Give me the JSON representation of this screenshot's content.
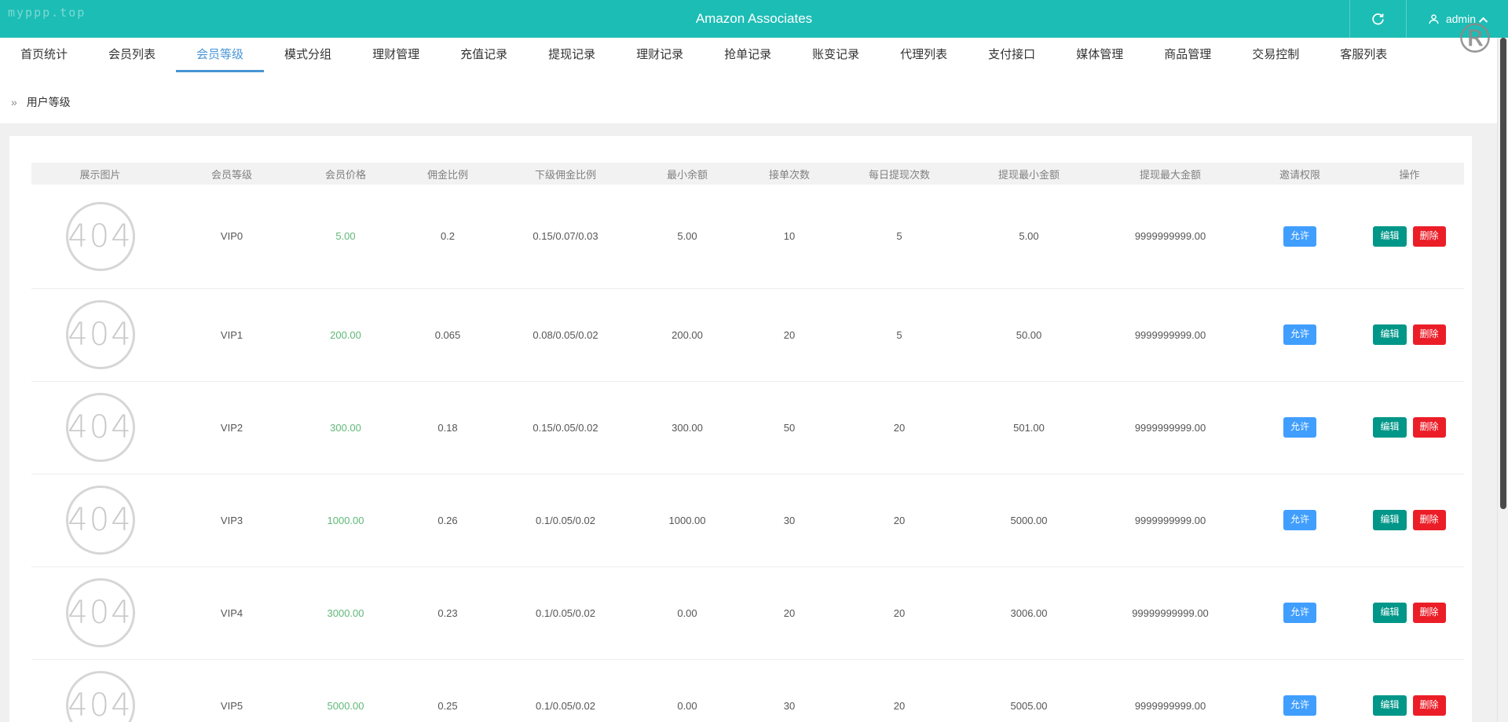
{
  "header": {
    "site": "myppp.top",
    "title": "Amazon Associates",
    "user": "admin"
  },
  "watermark": {
    "glyph": "®"
  },
  "nav": {
    "tabs": [
      {
        "label": "首页统计",
        "active": false
      },
      {
        "label": "会员列表",
        "active": false
      },
      {
        "label": "会员等级",
        "active": true
      },
      {
        "label": "模式分组",
        "active": false
      },
      {
        "label": "理财管理",
        "active": false
      },
      {
        "label": "充值记录",
        "active": false
      },
      {
        "label": "提现记录",
        "active": false
      },
      {
        "label": "理财记录",
        "active": false
      },
      {
        "label": "抢单记录",
        "active": false
      },
      {
        "label": "账变记录",
        "active": false
      },
      {
        "label": "代理列表",
        "active": false
      },
      {
        "label": "支付接口",
        "active": false
      },
      {
        "label": "媒体管理",
        "active": false
      },
      {
        "label": "商品管理",
        "active": false
      },
      {
        "label": "交易控制",
        "active": false
      },
      {
        "label": "客服列表",
        "active": false
      }
    ]
  },
  "breadcrumb": {
    "arrow": "»",
    "label": "用户等级"
  },
  "table": {
    "columns": [
      "展示图片",
      "会员等级",
      "会员价格",
      "佣金比例",
      "下级佣金比例",
      "最小余额",
      "接单次数",
      "每日提现次数",
      "提现最小金额",
      "提现最大金额",
      "邀请权限",
      "操作"
    ],
    "placeholder": "404",
    "allow_label": "允许",
    "edit_label": "编辑",
    "delete_label": "删除",
    "rows": [
      {
        "level": "VIP0",
        "price": "5.00",
        "commission": "0.2",
        "sub_commission": "0.15/0.07/0.03",
        "min_balance": "5.00",
        "order_count": "10",
        "daily_withdraw_count": "5",
        "withdraw_min": "5.00",
        "withdraw_max": "9999999999.00"
      },
      {
        "level": "VIP1",
        "price": "200.00",
        "commission": "0.065",
        "sub_commission": "0.08/0.05/0.02",
        "min_balance": "200.00",
        "order_count": "20",
        "daily_withdraw_count": "5",
        "withdraw_min": "50.00",
        "withdraw_max": "9999999999.00"
      },
      {
        "level": "VIP2",
        "price": "300.00",
        "commission": "0.18",
        "sub_commission": "0.15/0.05/0.02",
        "min_balance": "300.00",
        "order_count": "50",
        "daily_withdraw_count": "20",
        "withdraw_min": "501.00",
        "withdraw_max": "9999999999.00"
      },
      {
        "level": "VIP3",
        "price": "1000.00",
        "commission": "0.26",
        "sub_commission": "0.1/0.05/0.02",
        "min_balance": "1000.00",
        "order_count": "30",
        "daily_withdraw_count": "20",
        "withdraw_min": "5000.00",
        "withdraw_max": "9999999999.00"
      },
      {
        "level": "VIP4",
        "price": "3000.00",
        "commission": "0.23",
        "sub_commission": "0.1/0.05/0.02",
        "min_balance": "0.00",
        "order_count": "20",
        "daily_withdraw_count": "20",
        "withdraw_min": "3006.00",
        "withdraw_max": "99999999999.00"
      },
      {
        "level": "VIP5",
        "price": "5000.00",
        "commission": "0.25",
        "sub_commission": "0.1/0.05/0.02",
        "min_balance": "0.00",
        "order_count": "30",
        "daily_withdraw_count": "20",
        "withdraw_min": "5005.00",
        "withdraw_max": "9999999999.00"
      }
    ]
  },
  "colors": {
    "header_teal": "#1cbdb5",
    "active_tab_blue": "#4795d5",
    "price_green": "#5FB878",
    "allow_blue": "#409eff",
    "edit_teal": "#009688",
    "delete_red": "#eb1e28"
  }
}
